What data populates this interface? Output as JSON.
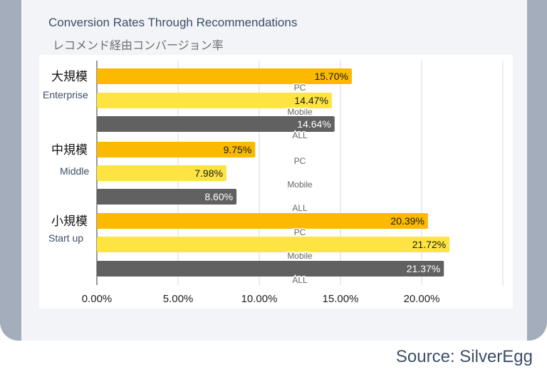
{
  "title": "Conversion Rates Through Recommendations",
  "subtitle": "レコメンド経由コンバージョン率",
  "source": "Source: SilverEgg",
  "chart_data": {
    "type": "bar",
    "orientation": "horizontal",
    "xlim": [
      0,
      25
    ],
    "x_ticks": [
      "0.00%",
      "5.00%",
      "10.00%",
      "15.00%",
      "20.00%"
    ],
    "grid": true,
    "colors": {
      "PC": "#fbb900",
      "Mobile": "#fde443",
      "ALL": "#616161"
    },
    "groups": [
      {
        "label": "大規模",
        "sublabel": "Enterprise",
        "bars": [
          {
            "series": "PC",
            "value": 15.7,
            "label": "15.70%"
          },
          {
            "series": "Mobile",
            "value": 14.47,
            "label": "14.47%"
          },
          {
            "series": "ALL",
            "value": 14.64,
            "label": "14.64%"
          }
        ]
      },
      {
        "label": "中規模",
        "sublabel": "Middle",
        "bars": [
          {
            "series": "PC",
            "value": 9.75,
            "label": "9.75%"
          },
          {
            "series": "Mobile",
            "value": 7.98,
            "label": "7.98%"
          },
          {
            "series": "ALL",
            "value": 8.6,
            "label": "8.60%"
          }
        ]
      },
      {
        "label": "小規模",
        "sublabel": "Start up",
        "bars": [
          {
            "series": "PC",
            "value": 20.39,
            "label": "20.39%"
          },
          {
            "series": "Mobile",
            "value": 21.72,
            "label": "21.72%"
          },
          {
            "series": "ALL",
            "value": 21.37,
            "label": "21.37%"
          }
        ]
      }
    ]
  }
}
